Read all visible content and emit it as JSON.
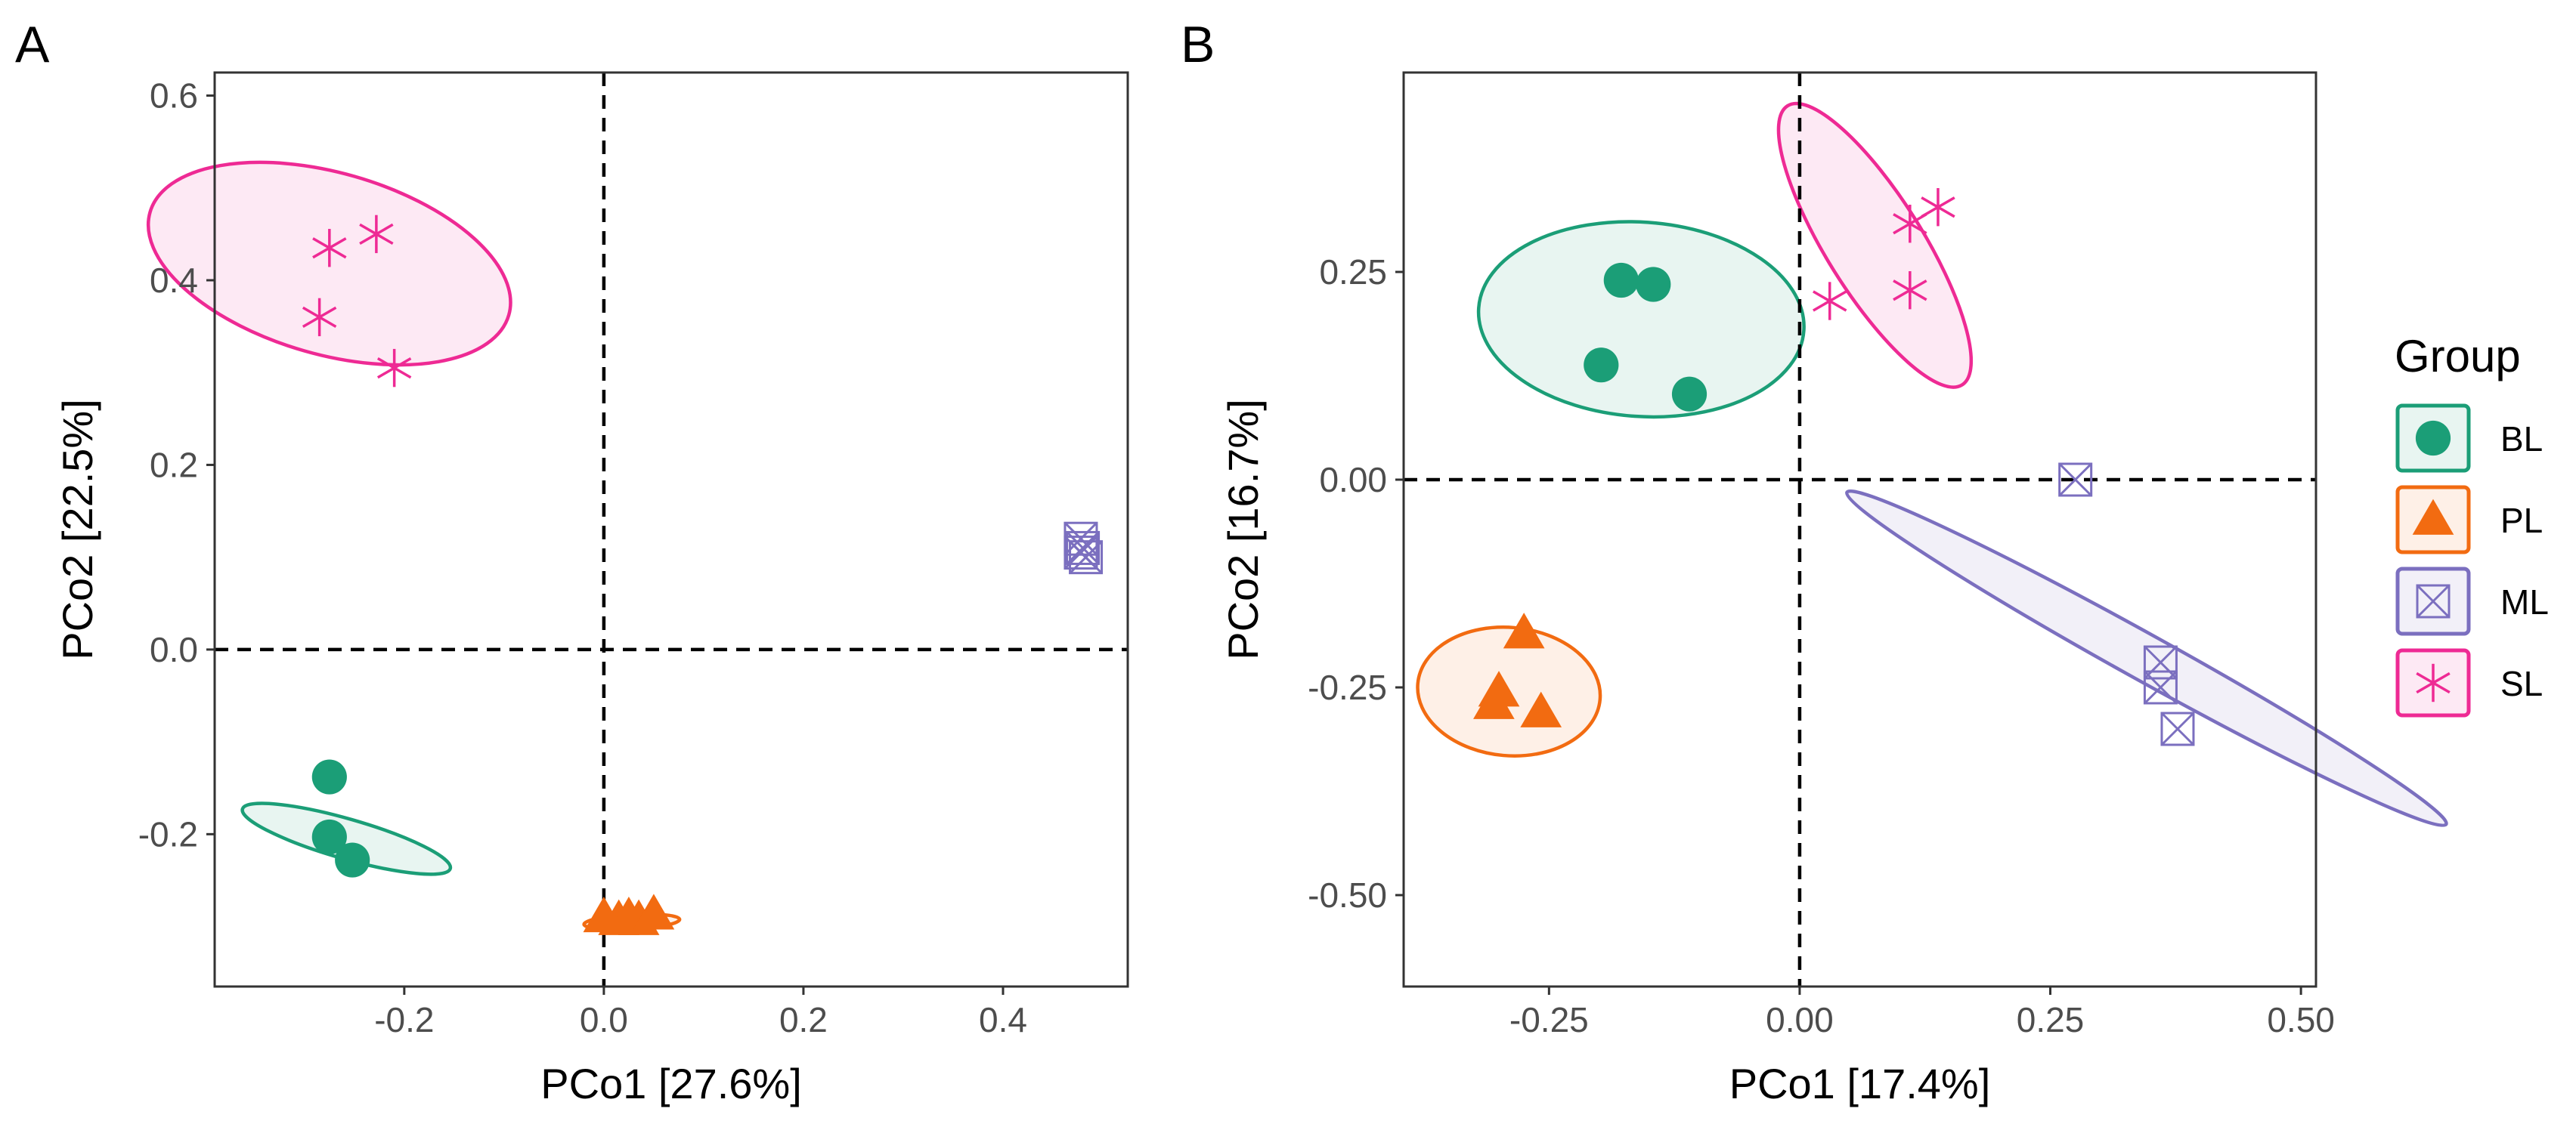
{
  "legend": {
    "title": "Group",
    "items": [
      {
        "label": "BL",
        "color": "#1b9e77",
        "shape": "circle"
      },
      {
        "label": "PL",
        "color": "#f26b11",
        "shape": "triangle"
      },
      {
        "label": "ML",
        "color": "#7b6fbf",
        "shape": "square-cross"
      },
      {
        "label": "SL",
        "color": "#ee2a94",
        "shape": "asterisk"
      }
    ]
  },
  "chart_data": [
    {
      "panel": "A",
      "type": "scatter",
      "xlabel": "PCo1 [27.6%]",
      "ylabel": "PCo2 [22.5%]",
      "xlim": [
        -0.39,
        0.525
      ],
      "ylim": [
        -0.365,
        0.625
      ],
      "xticks": [
        -0.2,
        0.0,
        0.2,
        0.4
      ],
      "xtick_labels": [
        "-0.2",
        "0.0",
        "0.2",
        "0.4"
      ],
      "yticks": [
        -0.2,
        0.0,
        0.2,
        0.4,
        0.6
      ],
      "ytick_labels": [
        "-0.2",
        "0.0",
        "0.2",
        "0.4",
        "0.6"
      ],
      "reference_lines": {
        "x": 0,
        "y": 0
      },
      "grid": false,
      "series": [
        {
          "name": "BL",
          "points": [
            [
              -0.275,
              -0.138
            ],
            [
              -0.275,
              -0.203
            ],
            [
              -0.252,
              -0.228
            ]
          ],
          "ellipse": {
            "cx": -0.258,
            "cy": -0.205,
            "rx": 0.02,
            "ry": 0.117,
            "angle": -74
          }
        },
        {
          "name": "PL",
          "points": [
            [
              0.0,
              -0.29
            ],
            [
              0.015,
              -0.293
            ],
            [
              0.025,
              -0.29
            ],
            [
              0.035,
              -0.293
            ],
            [
              0.05,
              -0.287
            ]
          ],
          "ellipse": {
            "cx": 0.028,
            "cy": -0.295,
            "rx": 0.048,
            "ry": 0.008,
            "angle": -3
          }
        },
        {
          "name": "ML",
          "points": [
            [
              0.478,
              0.12
            ],
            [
              0.48,
              0.11
            ],
            [
              0.483,
              0.1
            ],
            [
              0.478,
              0.105
            ]
          ],
          "ellipse": null
        },
        {
          "name": "SL",
          "points": [
            [
              -0.275,
              0.435
            ],
            [
              -0.228,
              0.45
            ],
            [
              -0.285,
              0.36
            ],
            [
              -0.21,
              0.305
            ]
          ],
          "ellipse": {
            "cx": -0.275,
            "cy": 0.418,
            "rx": 0.091,
            "ry": 0.202,
            "angle": -74
          }
        }
      ]
    },
    {
      "panel": "B",
      "type": "scatter",
      "xlabel": "PCo1 [17.4%]",
      "ylabel": "PCo2 [16.7%]",
      "xlim": [
        -0.395,
        0.515
      ],
      "ylim": [
        -0.61,
        0.49
      ],
      "xticks": [
        -0.25,
        0.0,
        0.25,
        0.5
      ],
      "xtick_labels": [
        "-0.25",
        "0.00",
        "0.25",
        "0.50"
      ],
      "yticks": [
        -0.5,
        -0.25,
        0.0,
        0.25
      ],
      "ytick_labels": [
        "-0.50",
        "-0.25",
        "0.00",
        "0.25"
      ],
      "reference_lines": {
        "x": 0,
        "y": 0
      },
      "grid": false,
      "series": [
        {
          "name": "BL",
          "points": [
            [
              -0.178,
              0.24
            ],
            [
              -0.146,
              0.235
            ],
            [
              -0.198,
              0.138
            ],
            [
              -0.11,
              0.103
            ]
          ],
          "ellipse": {
            "cx": -0.158,
            "cy": 0.193,
            "rx": 0.097,
            "ry": 0.196,
            "angle": -86
          }
        },
        {
          "name": "PL",
          "points": [
            [
              -0.275,
              -0.185
            ],
            [
              -0.3,
              -0.255
            ],
            [
              -0.305,
              -0.27
            ],
            [
              -0.258,
              -0.28
            ]
          ],
          "ellipse": {
            "cx": -0.29,
            "cy": -0.255,
            "rx": 0.064,
            "ry": 0.11,
            "angle": -85
          }
        },
        {
          "name": "ML",
          "points": [
            [
              0.275,
              0.0
            ],
            [
              0.36,
              -0.22
            ],
            [
              0.36,
              -0.25
            ],
            [
              0.377,
              -0.3
            ]
          ],
          "ellipse": {
            "cx": 0.346,
            "cy": -0.215,
            "rx": 0.023,
            "ry": 0.412,
            "angle": -61
          }
        },
        {
          "name": "SL",
          "points": [
            [
              0.03,
              0.215
            ],
            [
              0.11,
              0.308
            ],
            [
              0.138,
              0.328
            ],
            [
              0.11,
              0.228
            ]
          ],
          "ellipse": {
            "cx": 0.075,
            "cy": 0.282,
            "rx": 0.048,
            "ry": 0.198,
            "angle": -32
          }
        }
      ]
    }
  ]
}
